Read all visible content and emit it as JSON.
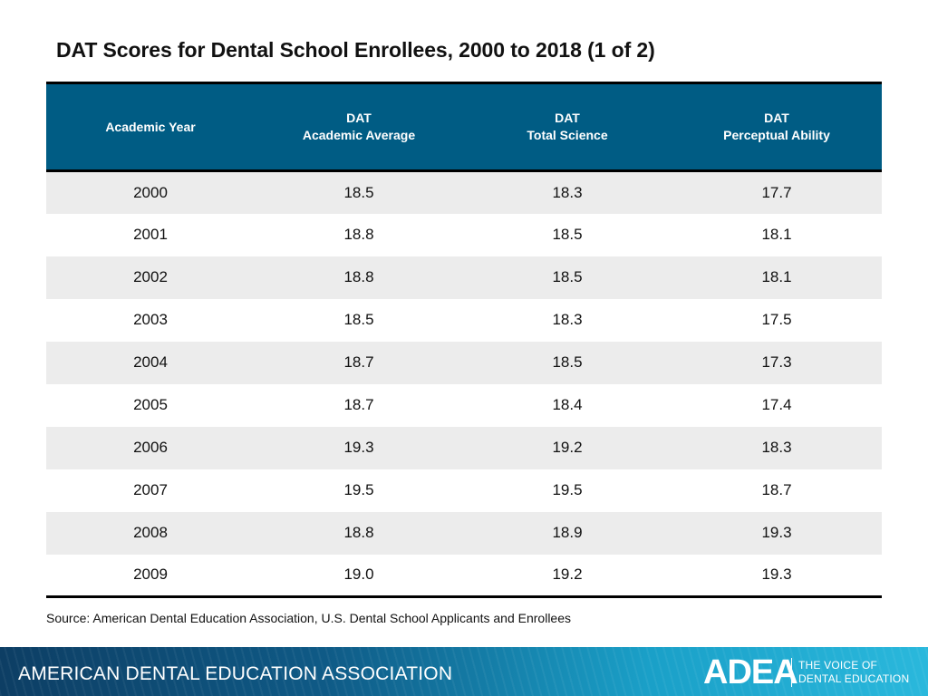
{
  "slide": {
    "title": "DAT Scores for Dental School Enrollees, 2000 to 2018 (1 of 2)",
    "source": "Source: American Dental Education Association, U.S. Dental School Applicants and Enrollees"
  },
  "table": {
    "headers": [
      {
        "line1": "Academic Year",
        "line2": ""
      },
      {
        "line1": "DAT",
        "line2": "Academic Average"
      },
      {
        "line1": "DAT",
        "line2": "Total Science"
      },
      {
        "line1": "DAT",
        "line2": "Perceptual Ability"
      }
    ],
    "rows": [
      [
        "2000",
        "18.5",
        "18.3",
        "17.7"
      ],
      [
        "2001",
        "18.8",
        "18.5",
        "18.1"
      ],
      [
        "2002",
        "18.8",
        "18.5",
        "18.1"
      ],
      [
        "2003",
        "18.5",
        "18.3",
        "17.5"
      ],
      [
        "2004",
        "18.7",
        "18.5",
        "17.3"
      ],
      [
        "2005",
        "18.7",
        "18.4",
        "17.4"
      ],
      [
        "2006",
        "19.3",
        "19.2",
        "18.3"
      ],
      [
        "2007",
        "19.5",
        "19.5",
        "18.7"
      ],
      [
        "2008",
        "18.8",
        "18.9",
        "19.3"
      ],
      [
        "2009",
        "19.0",
        "19.2",
        "19.3"
      ]
    ]
  },
  "footer": {
    "org_name": "AMERICAN DENTAL EDUCATION ASSOCIATION",
    "logo": "ADEA",
    "tagline_line1": "THE VOICE OF",
    "tagline_line2": "DENTAL EDUCATION"
  },
  "colors": {
    "header_bg": "#005c84",
    "row_alt_bg": "#ececec",
    "footer_start": "#0d3e64",
    "footer_end": "#2ab8dc"
  }
}
